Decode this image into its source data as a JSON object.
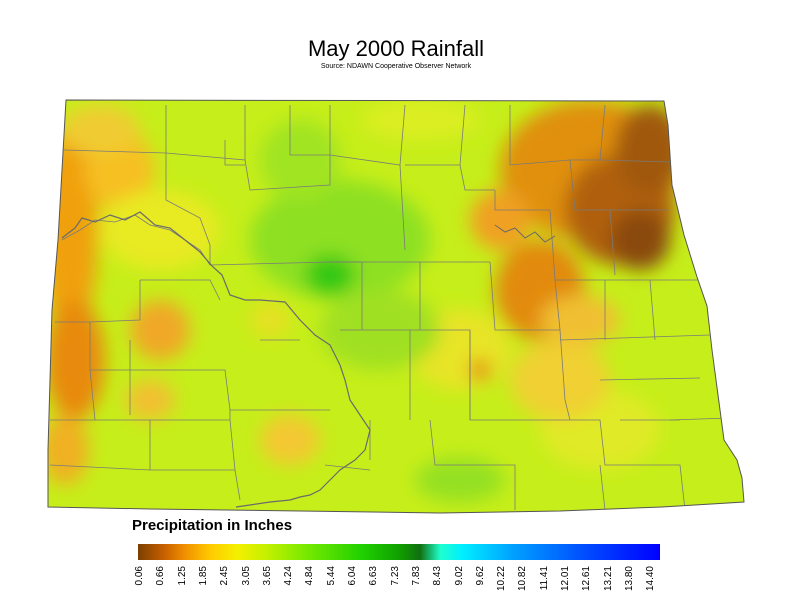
{
  "title": "May 2000 Rainfall",
  "subtitle": "Source: NDAWN Cooperative Observer Network",
  "legend": {
    "title": "Precipitation in Inches",
    "tick_values": [
      "0.06",
      "0.66",
      "1.25",
      "1.85",
      "2.45",
      "3.05",
      "3.65",
      "4.24",
      "4.84",
      "5.44",
      "6.04",
      "6.63",
      "7.23",
      "7.83",
      "8.43",
      "9.02",
      "9.62",
      "10.22",
      "10.82",
      "11.41",
      "12.01",
      "12.61",
      "13.21",
      "13.80",
      "14.40"
    ],
    "colors": [
      "#7a3f00",
      "#e07800",
      "#ffb000",
      "#ffee00",
      "#c8f000",
      "#90e800",
      "#4ee000",
      "#20c800",
      "#108000",
      "#00ffff",
      "#00c0ff",
      "#0060ff",
      "#0000ff"
    ]
  },
  "map": {
    "region": "North Dakota",
    "base_color": "#c6ee1a"
  }
}
